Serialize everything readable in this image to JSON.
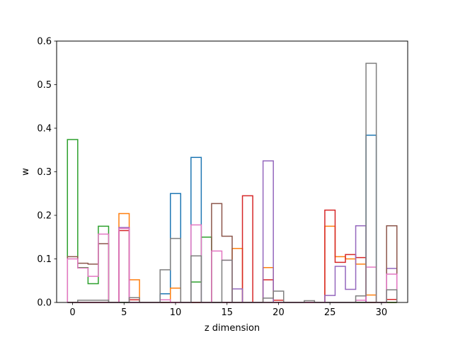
{
  "chart_data": {
    "type": "step",
    "xlabel": "z dimension",
    "ylabel": "w",
    "xlim": [
      -1.55,
      32.55
    ],
    "ylim": [
      0,
      0.6
    ],
    "x_ticks": [
      0,
      5,
      10,
      15,
      20,
      25,
      30
    ],
    "y_ticks": [
      0.0,
      0.1,
      0.2,
      0.3,
      0.4,
      0.5,
      0.6
    ],
    "x_tick_labels": [
      "0",
      "5",
      "10",
      "15",
      "20",
      "25",
      "30"
    ],
    "y_tick_labels": [
      "0.0",
      "0.1",
      "0.2",
      "0.3",
      "0.4",
      "0.5",
      "0.6"
    ],
    "grid": false,
    "categories": [
      0,
      1,
      2,
      3,
      4,
      5,
      6,
      7,
      8,
      9,
      10,
      11,
      12,
      13,
      14,
      15,
      16,
      17,
      18,
      19,
      20,
      21,
      22,
      23,
      24,
      25,
      26,
      27,
      28,
      29,
      30,
      31
    ],
    "series": [
      {
        "color": "#1f77b4",
        "values": [
          0,
          0,
          0,
          0,
          0,
          0,
          0,
          0,
          0,
          0.02,
          0.25,
          0,
          0.333,
          0,
          0,
          0,
          0,
          0,
          0,
          0,
          0,
          0,
          0,
          0,
          0,
          0,
          0,
          0,
          0,
          0.384,
          0,
          0
        ]
      },
      {
        "color": "#ff7f0e",
        "values": [
          0,
          0,
          0,
          0,
          0,
          0.204,
          0.052,
          0,
          0,
          0,
          0.033,
          0,
          0,
          0,
          0,
          0,
          0.124,
          0,
          0,
          0.08,
          0,
          0,
          0,
          0,
          0,
          0.175,
          0.105,
          0.1,
          0.088,
          0.017,
          0,
          0
        ]
      },
      {
        "color": "#2ca02c",
        "values": [
          0.374,
          0.08,
          0.043,
          0.175,
          0,
          0,
          0,
          0,
          0,
          0,
          0,
          0,
          0.047,
          0.15,
          0,
          0,
          0,
          0,
          0,
          0,
          0,
          0,
          0,
          0,
          0,
          0,
          0,
          0,
          0,
          0,
          0,
          0
        ]
      },
      {
        "color": "#d62728",
        "values": [
          0,
          0,
          0,
          0,
          0,
          0.165,
          0.006,
          0,
          0,
          0,
          0,
          0,
          0,
          0,
          0,
          0,
          0,
          0.245,
          0,
          0.052,
          0.005,
          0,
          0,
          0,
          0,
          0.212,
          0.092,
          0.11,
          0.103,
          0,
          0,
          0.007
        ]
      },
      {
        "color": "#9467bd",
        "values": [
          0,
          0,
          0,
          0,
          0,
          0.172,
          0,
          0,
          0,
          0,
          0,
          0,
          0,
          0,
          0,
          0,
          0.031,
          0,
          0,
          0.325,
          0,
          0,
          0,
          0,
          0,
          0.016,
          0.083,
          0.03,
          0.176,
          0,
          0,
          0.078
        ]
      },
      {
        "color": "#8c564b",
        "values": [
          0.105,
          0.09,
          0.088,
          0.135,
          0,
          0,
          0,
          0,
          0,
          0,
          0,
          0,
          0,
          0,
          0.227,
          0.152,
          0,
          0,
          0,
          0,
          0,
          0,
          0,
          0,
          0,
          0,
          0,
          0,
          0,
          0,
          0,
          0.176
        ]
      },
      {
        "color": "#e377c2",
        "values": [
          0.1,
          0.079,
          0.06,
          0.157,
          0,
          0.17,
          0,
          0,
          0,
          0.006,
          0,
          0,
          0.178,
          0,
          0.118,
          0.097,
          0,
          0,
          0,
          0,
          0,
          0,
          0,
          0,
          0,
          0,
          0,
          0,
          0.005,
          0.081,
          0,
          0.065
        ]
      },
      {
        "color": "#7f7f7f",
        "values": [
          0,
          0.005,
          0.005,
          0.005,
          0,
          0,
          0.011,
          0,
          0,
          0.075,
          0.147,
          0,
          0.107,
          0,
          0,
          0.097,
          0,
          0,
          0,
          0.01,
          0.026,
          0,
          0,
          0.004,
          0,
          0,
          0,
          0,
          0.015,
          0.549,
          0,
          0.029
        ]
      }
    ]
  }
}
